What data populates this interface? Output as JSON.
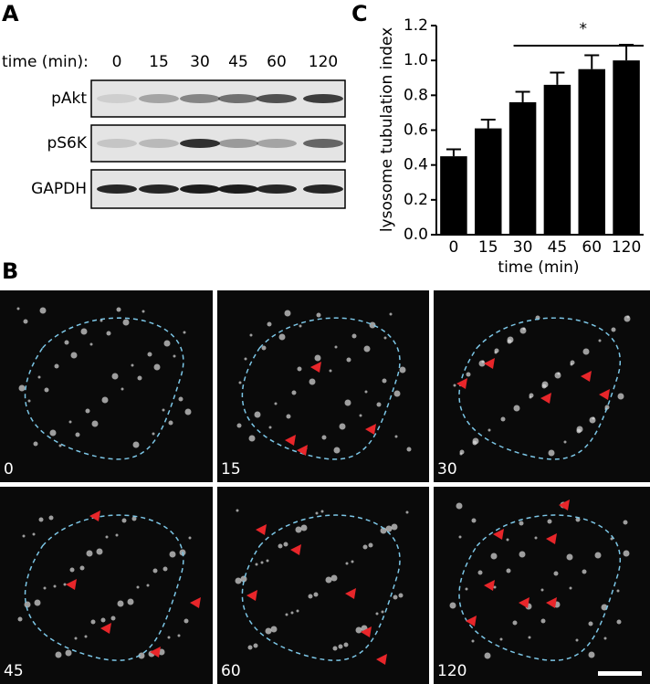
{
  "panel_a": {
    "label": "A",
    "time_header": "time (min):",
    "times": [
      "0",
      "15",
      "30",
      "45",
      "60",
      "120"
    ],
    "rows": [
      "pAkt",
      "pS6K",
      "GAPDH"
    ]
  },
  "panel_b": {
    "label": "B",
    "frames": [
      "0",
      "15",
      "30",
      "45",
      "60",
      "120"
    ]
  },
  "chart_data": {
    "type": "bar",
    "panel_label": "C",
    "categories": [
      "0",
      "15",
      "30",
      "45",
      "60",
      "120"
    ],
    "values": [
      0.45,
      0.61,
      0.76,
      0.86,
      0.95,
      1.0
    ],
    "errors": [
      0.04,
      0.05,
      0.06,
      0.07,
      0.08,
      0.09
    ],
    "color": "#000000",
    "ylim": [
      0,
      1.2
    ],
    "yticks": [
      {
        "value": 0,
        "label": "0.0"
      },
      0.2,
      0.4,
      0.6,
      0.8,
      {
        "value": 1,
        "label": "1.0"
      },
      1.2
    ],
    "ylabel": "lysosome tubulation index",
    "xlabel": "time (min)",
    "annotation": "*"
  }
}
